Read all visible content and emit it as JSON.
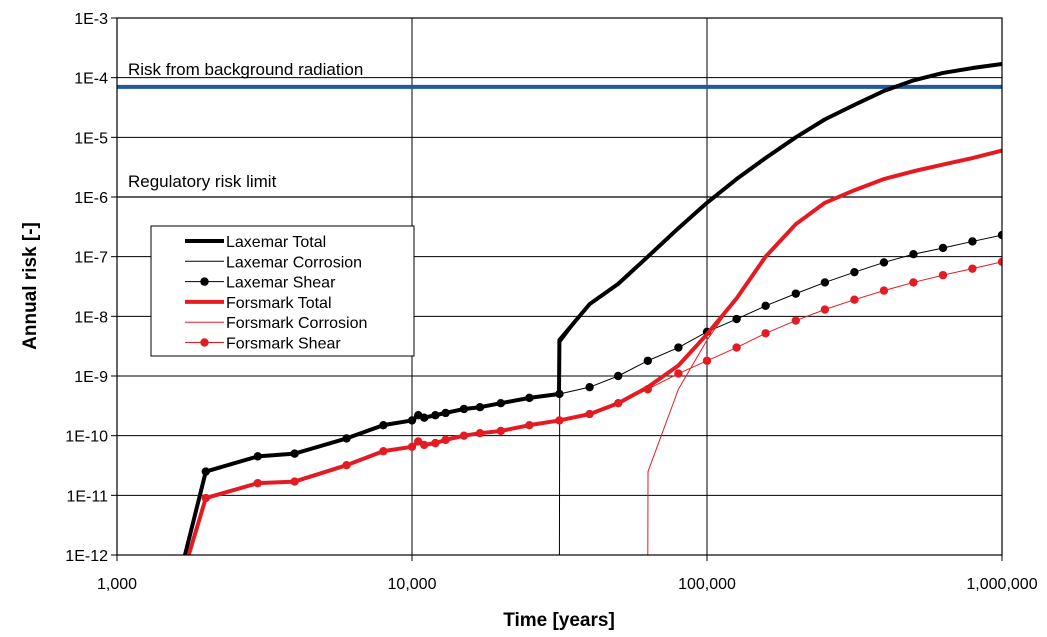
{
  "chart_data": {
    "type": "line",
    "xlabel": "Time [years]",
    "ylabel": "Annual risk [-]",
    "x_scale": "log",
    "y_scale": "log",
    "xlim": [
      1000,
      1000000
    ],
    "ylim": [
      1e-12,
      0.001
    ],
    "x_ticks": [
      1000,
      10000,
      100000,
      1000000
    ],
    "x_tick_labels": [
      "1,000",
      "10,000",
      "100,000",
      "1,000,000"
    ],
    "y_ticks": [
      1e-12,
      1e-11,
      1e-10,
      1e-09,
      1e-08,
      1e-07,
      1e-06,
      1e-05,
      0.0001,
      0.001
    ],
    "y_tick_labels": [
      "1E-12",
      "1E-11",
      "1E-10",
      "1E-9",
      "1E-8",
      "1E-7",
      "1E-6",
      "1E-5",
      "1E-4",
      "1E-3"
    ],
    "grid": true,
    "legend_position": "left",
    "annotations": [
      {
        "text": "Risk from background radiation",
        "y": 0.0001
      },
      {
        "text": "Regulatory risk limit",
        "y": 1e-06
      }
    ],
    "reference_lines": [
      {
        "label": "Risk from background radiation",
        "y": 7e-05,
        "color": "#1f5aa0"
      },
      {
        "label": "Regulatory risk limit",
        "y": 1e-06,
        "color": "#000000"
      }
    ],
    "series": [
      {
        "name": "Laxemar Total",
        "color": "#000000",
        "width": 4,
        "markers": false,
        "x": [
          1700,
          2000,
          3000,
          4000,
          6000,
          8000,
          10000,
          10500,
          11000,
          12000,
          13000,
          15000,
          17000,
          20000,
          25000,
          31500,
          31600,
          40000,
          50000,
          63000,
          80000,
          100000,
          126000,
          158000,
          200000,
          251000,
          316000,
          398000,
          501000,
          631000,
          794000,
          1000000
        ],
        "y": [
          1e-12,
          2.5e-11,
          4.5e-11,
          5e-11,
          9e-11,
          1.5e-10,
          1.8e-10,
          2.2e-10,
          2e-10,
          2.2e-10,
          2.4e-10,
          2.8e-10,
          3e-10,
          3.5e-10,
          4.3e-10,
          5e-10,
          4e-09,
          1.6e-08,
          3.5e-08,
          1e-07,
          3e-07,
          8e-07,
          2e-06,
          4.5e-06,
          1e-05,
          2e-05,
          3.5e-05,
          6e-05,
          9e-05,
          0.00012,
          0.000145,
          0.00017
        ]
      },
      {
        "name": "Laxemar Corrosion",
        "color": "#000000",
        "width": 1,
        "markers": false,
        "x": [
          31600,
          31700,
          40000,
          50000,
          63000,
          80000,
          100000,
          126000,
          158000,
          200000,
          251000,
          316000,
          398000,
          501000,
          631000,
          794000,
          1000000
        ],
        "y": [
          1e-12,
          3.5e-09,
          1.6e-08,
          3.5e-08,
          1e-07,
          3e-07,
          8e-07,
          2e-06,
          4.5e-06,
          1e-05,
          2e-05,
          3.5e-05,
          6e-05,
          9e-05,
          0.00012,
          0.000145,
          0.00017
        ]
      },
      {
        "name": "Laxemar Shear",
        "color": "#000000",
        "width": 1,
        "markers": true,
        "x": [
          1700,
          2000,
          3000,
          4000,
          6000,
          8000,
          10000,
          10500,
          11000,
          12000,
          13000,
          15000,
          17000,
          20000,
          25000,
          31600,
          40000,
          50000,
          63000,
          80000,
          100000,
          126000,
          158000,
          200000,
          251000,
          316000,
          398000,
          501000,
          631000,
          794000,
          1000000
        ],
        "y": [
          1e-12,
          2.5e-11,
          4.5e-11,
          5e-11,
          9e-11,
          1.5e-10,
          1.8e-10,
          2.2e-10,
          2e-10,
          2.2e-10,
          2.4e-10,
          2.8e-10,
          3e-10,
          3.5e-10,
          4.3e-10,
          5e-10,
          6.5e-10,
          1e-09,
          1.8e-09,
          3e-09,
          5.5e-09,
          9e-09,
          1.5e-08,
          2.4e-08,
          3.7e-08,
          5.5e-08,
          8e-08,
          1.1e-07,
          1.4e-07,
          1.8e-07,
          2.3e-07
        ]
      },
      {
        "name": "Forsmark Total",
        "color": "#e31b23",
        "width": 4,
        "markers": false,
        "x": [
          1750,
          2000,
          3000,
          4000,
          6000,
          8000,
          10000,
          10500,
          11000,
          12000,
          13000,
          15000,
          17000,
          20000,
          25000,
          31600,
          40000,
          50000,
          63000,
          80000,
          100000,
          126000,
          158000,
          200000,
          251000,
          316000,
          398000,
          501000,
          631000,
          794000,
          1000000
        ],
        "y": [
          1e-12,
          9e-12,
          1.6e-11,
          1.7e-11,
          3.2e-11,
          5.5e-11,
          6.5e-11,
          8e-11,
          7e-11,
          7.5e-11,
          8.5e-11,
          1e-10,
          1.1e-10,
          1.2e-10,
          1.5e-10,
          1.8e-10,
          2.3e-10,
          3.5e-10,
          6.5e-10,
          1.5e-09,
          5e-09,
          2e-08,
          1e-07,
          3.5e-07,
          8e-07,
          1.3e-06,
          2e-06,
          2.7e-06,
          3.5e-06,
          4.5e-06,
          6e-06
        ]
      },
      {
        "name": "Forsmark Corrosion",
        "color": "#e31b23",
        "width": 1,
        "markers": false,
        "x": [
          63000,
          63100,
          80000,
          100000,
          126000,
          158000,
          200000,
          251000,
          316000,
          398000,
          501000,
          631000,
          794000,
          1000000
        ],
        "y": [
          1e-12,
          2.5e-11,
          6e-10,
          4e-09,
          2e-08,
          1e-07,
          3.5e-07,
          8e-07,
          1.3e-06,
          2e-06,
          2.7e-06,
          3.5e-06,
          4.5e-06,
          6e-06
        ]
      },
      {
        "name": "Forsmark Shear",
        "color": "#e31b23",
        "width": 1,
        "markers": true,
        "x": [
          1750,
          2000,
          3000,
          4000,
          6000,
          8000,
          10000,
          10500,
          11000,
          12000,
          13000,
          15000,
          17000,
          20000,
          25000,
          31600,
          40000,
          50000,
          63000,
          80000,
          100000,
          126000,
          158000,
          200000,
          251000,
          316000,
          398000,
          501000,
          631000,
          794000,
          1000000
        ],
        "y": [
          1e-12,
          9e-12,
          1.6e-11,
          1.7e-11,
          3.2e-11,
          5.5e-11,
          6.5e-11,
          8e-11,
          7e-11,
          7.5e-11,
          8.5e-11,
          1e-10,
          1.1e-10,
          1.2e-10,
          1.5e-10,
          1.8e-10,
          2.3e-10,
          3.5e-10,
          6e-10,
          1.1e-09,
          1.8e-09,
          3e-09,
          5.2e-09,
          8.5e-09,
          1.3e-08,
          1.9e-08,
          2.7e-08,
          3.7e-08,
          4.9e-08,
          6.3e-08,
          8.2e-08
        ]
      }
    ]
  }
}
